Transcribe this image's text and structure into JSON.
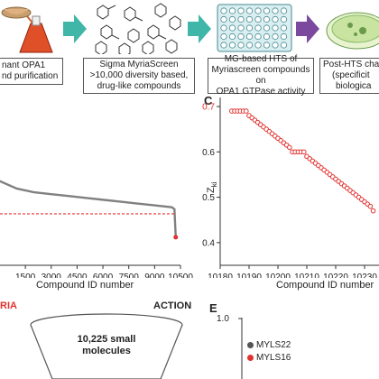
{
  "workflow": {
    "step1": {
      "line1": "nant OPA1",
      "line2": "nd purification"
    },
    "step2": {
      "line1": "Sigma MyriaScreen",
      "line2": ">10,000 diversity based,",
      "line3": "drug-like compounds"
    },
    "step3": {
      "line1": "MG-based HTS of",
      "line2": "Myriascreen compounds on",
      "line3": "OPA1 GTPase activity"
    },
    "step4": {
      "line1": "Post-HTS cha",
      "line2": "(specificit",
      "line3": "biologica"
    },
    "arrow_color": "#3fb6a8",
    "arrow_color_last": "#7b4a9e"
  },
  "panel_b": {
    "xlabel": "Compound ID number",
    "ticks": [
      "1500",
      "3000",
      "4500",
      "6000",
      "7500",
      "9000",
      "10500"
    ]
  },
  "panel_c": {
    "letter": "C",
    "ylabel": "Z",
    "ylabel_sub": "ki",
    "xlabel": "Compound ID number",
    "yticks": [
      "0.7",
      "0.6",
      "0.5",
      "0.4"
    ],
    "xticks": [
      "10180",
      "10190",
      "10200",
      "10210",
      "10220",
      "10230"
    ]
  },
  "panel_d": {
    "left_label": "RIA",
    "right_label": "ACTION",
    "funnel_line1": "10,225 small",
    "funnel_line2": "molecules"
  },
  "panel_e": {
    "letter": "E",
    "ytick": "1.0",
    "legend": [
      {
        "label": "MYLS22",
        "color": "#555555"
      },
      {
        "label": "MYLS16",
        "color": "#e0322f"
      }
    ]
  },
  "chart_data": [
    {
      "type": "line",
      "xlabel": "Compound ID number",
      "xlim": [
        0,
        10500
      ],
      "x_ticks": [
        1500,
        3000,
        4500,
        6000,
        7500,
        9000,
        10500
      ],
      "series": [
        {
          "color": "#808080",
          "x": [
            0,
            1000,
            2000,
            3000,
            4000,
            5000,
            6000,
            7000,
            8000,
            9000,
            10000,
            10150,
            10225
          ],
          "y": [
            0.3,
            0.22,
            0.18,
            0.16,
            0.14,
            0.12,
            0.1,
            0.08,
            0.06,
            0.04,
            0.02,
            0.0,
            -0.3
          ]
        }
      ],
      "threshold_line": {
        "color": "#e0322f",
        "style": "dashed"
      }
    },
    {
      "type": "scatter",
      "xlabel": "Compound ID number",
      "ylabel": "Z_ki",
      "xlim": [
        10180,
        10235
      ],
      "ylim": [
        0.35,
        0.72
      ],
      "x_ticks": [
        10180,
        10190,
        10200,
        10210,
        10220,
        10230
      ],
      "y_ticks": [
        0.4,
        0.5,
        0.6,
        0.7
      ],
      "series": [
        {
          "color": "#e0322f",
          "x": [
            10184,
            10185,
            10186,
            10187,
            10188,
            10189,
            10190,
            10191,
            10192,
            10193,
            10194,
            10195,
            10196,
            10197,
            10198,
            10199,
            10200,
            10201,
            10202,
            10203,
            10204,
            10205,
            10206,
            10207,
            10208,
            10209,
            10210,
            10211,
            10212,
            10213,
            10214,
            10215,
            10216,
            10217,
            10218,
            10219,
            10220,
            10221,
            10222,
            10223,
            10224,
            10225,
            10226,
            10227,
            10228,
            10229,
            10230,
            10231,
            10232,
            10233
          ],
          "y": [
            0.69,
            0.69,
            0.69,
            0.69,
            0.69,
            0.69,
            0.68,
            0.675,
            0.67,
            0.665,
            0.66,
            0.655,
            0.65,
            0.645,
            0.64,
            0.635,
            0.63,
            0.625,
            0.62,
            0.615,
            0.61,
            0.6,
            0.6,
            0.6,
            0.6,
            0.6,
            0.59,
            0.585,
            0.58,
            0.575,
            0.57,
            0.565,
            0.56,
            0.555,
            0.55,
            0.545,
            0.54,
            0.535,
            0.53,
            0.525,
            0.52,
            0.515,
            0.51,
            0.505,
            0.5,
            0.495,
            0.49,
            0.485,
            0.48,
            0.47
          ]
        }
      ]
    }
  ]
}
